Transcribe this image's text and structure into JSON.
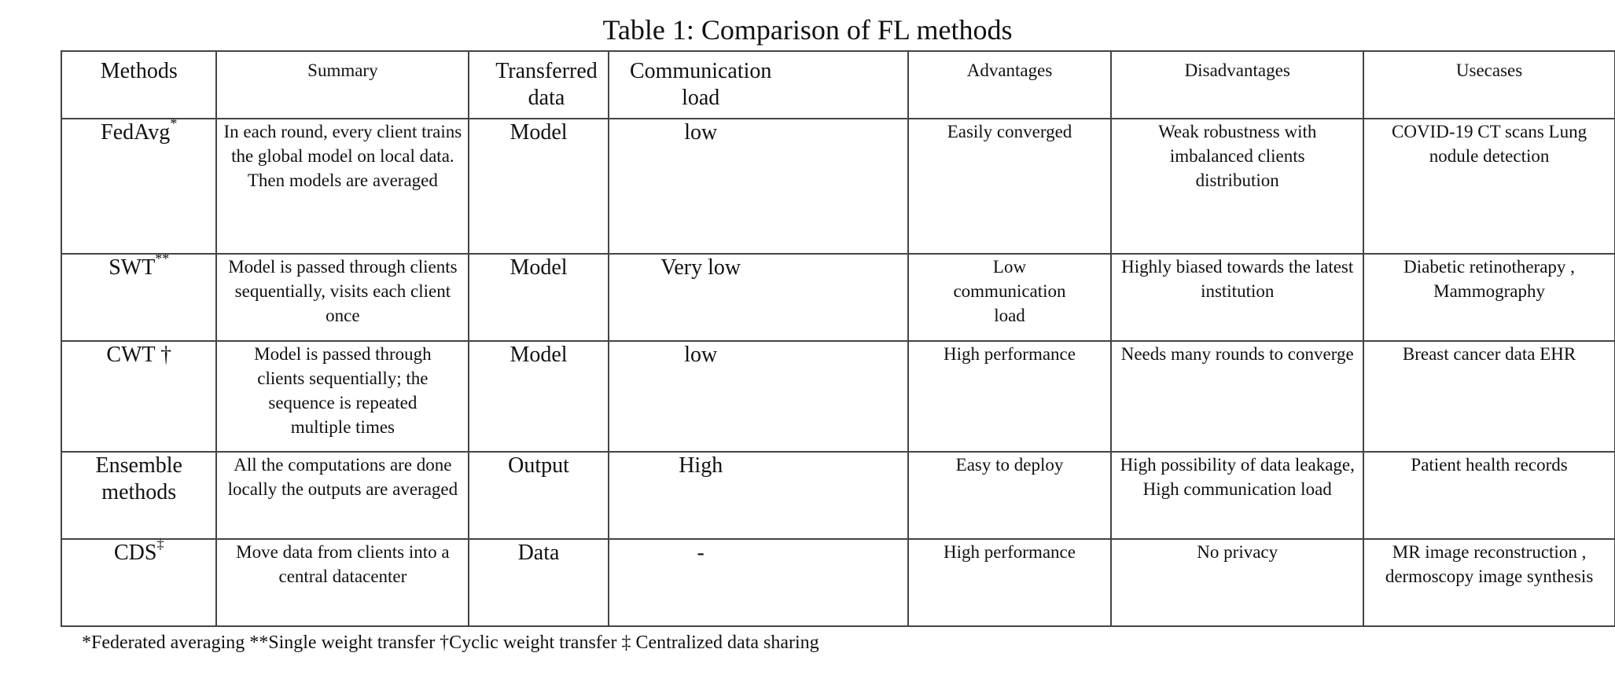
{
  "caption": "Table 1: Comparison of FL methods",
  "headers": {
    "methods": "Methods",
    "summary": "Summary",
    "transferred": "Transferred data",
    "communication": "Communication load",
    "advantages": "Advantages",
    "disadvantages": "Disadvantages",
    "usecases": "Usecases"
  },
  "rows": [
    {
      "method": "FedAvg",
      "mark": "*",
      "summary": "In each round, every client trains the global model on local data. Then models are averaged",
      "transferred": "Model",
      "load": "low",
      "advantages": "Easily converged",
      "disadvantages": "Weak robustness with imbalanced clients distribution",
      "usecases": "COVID-19 CT scans Lung nodule detection"
    },
    {
      "method": "SWT",
      "mark": "**",
      "summary": "Model is passed through clients sequentially, visits each client once",
      "transferred": "Model",
      "load": "Very low",
      "advantages": "Low communication load",
      "disadvantages": "Highly biased towards the latest institution",
      "usecases": "Diabetic retinotherapy , Mammography"
    },
    {
      "method": "CWT",
      "mark": "†",
      "summary": "Model is passed through clients sequentially; the sequence is repeated multiple times",
      "transferred": "Model",
      "load": "low",
      "advantages": "High performance",
      "disadvantages": "Needs many rounds to converge",
      "usecases": "Breast cancer data EHR"
    },
    {
      "method": "Ensemble methods",
      "mark": "",
      "summary": "All the computations are done locally the outputs are averaged",
      "transferred": "Output",
      "load": "High",
      "advantages": "Easy to deploy",
      "disadvantages": "High possibility of data leakage, High communication load",
      "usecases": "Patient health records"
    },
    {
      "method": "CDS",
      "mark": "‡",
      "summary": "Move data from clients into a central datacenter",
      "transferred": "Data",
      "load": "-",
      "advantages": "High performance",
      "disadvantages": "No privacy",
      "usecases": "MR image reconstruction , dermoscopy image synthesis"
    }
  ],
  "footnote": "*Federated averaging **Single weight transfer †Cyclic weight transfer ‡ Centralized data sharing"
}
